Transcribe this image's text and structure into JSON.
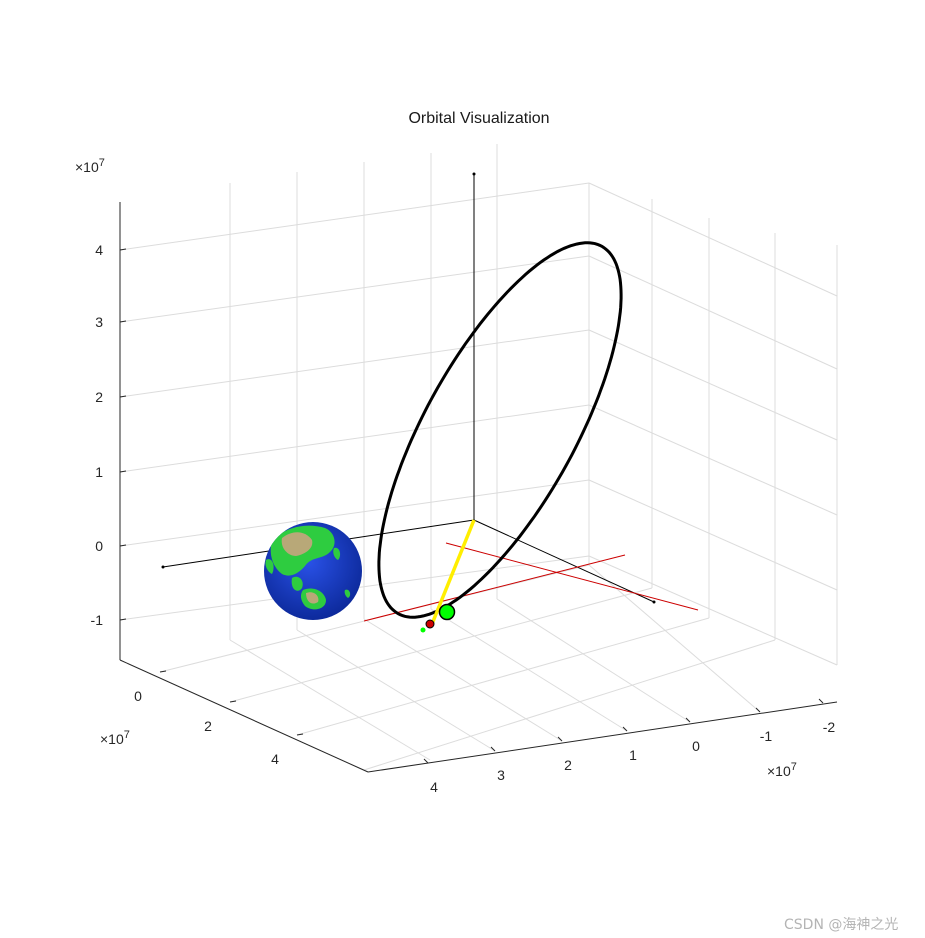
{
  "chart_data": {
    "type": "3d-line",
    "title": "Orbital Visualization",
    "xlabel": "",
    "ylabel": "",
    "zlabel": "",
    "grid": true,
    "axes": {
      "x": {
        "ticks": [
          4,
          3,
          2,
          1,
          0,
          -1,
          -2
        ],
        "labels": [
          "4",
          "3",
          "2",
          "1",
          "0",
          "-1",
          "-2"
        ],
        "exponent_label": "×10",
        "exponent_power": "7",
        "range": [
          -24000000.0,
          45000000.0
        ]
      },
      "y": {
        "ticks": [
          0,
          2,
          4
        ],
        "labels": [
          "0",
          "2",
          "4"
        ],
        "exponent_label": "×10",
        "exponent_power": "7",
        "range": [
          -8000000.0,
          55000000.0
        ]
      },
      "z": {
        "ticks": [
          4,
          3,
          2,
          1,
          0,
          -1
        ],
        "labels": [
          "4",
          "3",
          "2",
          "1",
          "0",
          "-1"
        ],
        "exponent_label": "×10",
        "exponent_power": "7",
        "range": [
          -15000000.0,
          45000000.0
        ]
      }
    },
    "series": [
      {
        "kind": "orbit",
        "color": "#000000",
        "description_points": "closed ellipse reaching ~4.3e7 on z"
      },
      {
        "kind": "earth-sphere",
        "color": "#1a3cc8"
      },
      {
        "kind": "reference-axes",
        "color": "#000000"
      },
      {
        "kind": "frame-lines",
        "color": "#cc0000"
      },
      {
        "kind": "sun-vector",
        "color": "#ffee00"
      },
      {
        "kind": "satellite-marker",
        "color": "#00ff00"
      }
    ]
  },
  "watermark": "CSDN @海神之光",
  "colors": {
    "orbit": "#000000",
    "grid": "#dcdcdc",
    "axis": "#262626",
    "earth_ocean": "#1a3cc8",
    "earth_land": "#2ecc40",
    "earth_desert": "#b8a878",
    "frame_lines": "#cc0000",
    "sun_vector": "#ffee00",
    "satellite": "#00ff00"
  }
}
